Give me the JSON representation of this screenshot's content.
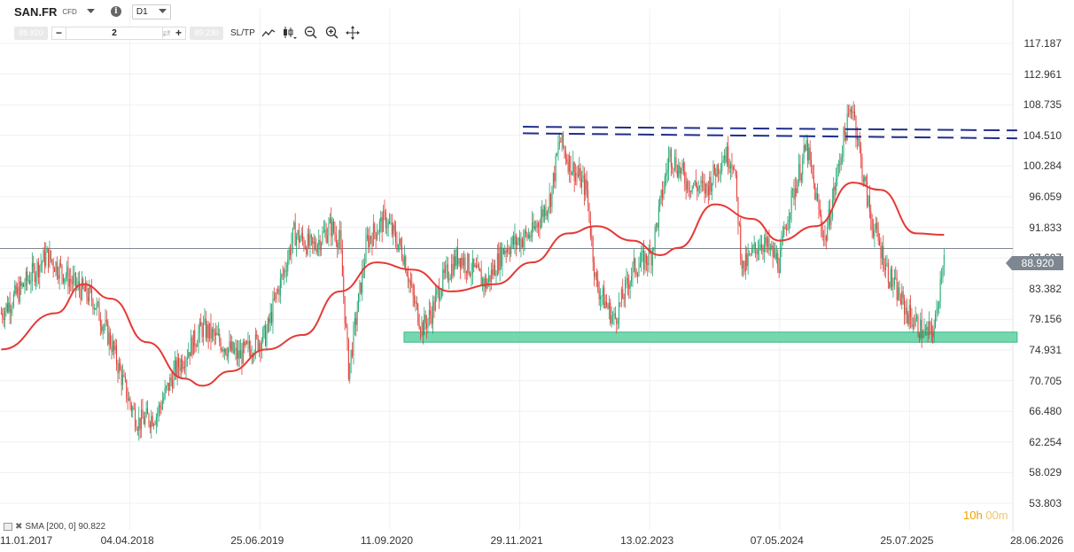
{
  "header": {
    "symbol": "SAN.FR",
    "instrument_type": "CFD",
    "timeframe": "D1",
    "sell_price": "88.920",
    "quantity": "2",
    "buy_price": "89.230",
    "sltp_label": "SL/TP",
    "icons": [
      "chevron-down-icon",
      "info-icon",
      "swap-icon",
      "line-chart-icon",
      "candlestick-icon",
      "zoom-out-icon",
      "zoom-in-icon",
      "move-icon"
    ]
  },
  "current_price_tag": "88.920",
  "indicator_legend": "SMA [200, 0] 90.822",
  "timer": {
    "hours": "10",
    "h": "h",
    "minutes": "00",
    "m": "m"
  },
  "colors": {
    "sma": "#e53935",
    "candle_up": "#1fa870",
    "candle_down": "#e53935",
    "resistance_lines": "#1f2f8c",
    "support_zone": "#66d4a7",
    "price_line": "#7e8691",
    "timer": "#f0a000"
  },
  "chart_data": {
    "type": "candlestick",
    "instrument": "SAN.FR",
    "timeframe": "D1",
    "y_ticks": [
      "117.187",
      "112.961",
      "108.735",
      "104.510",
      "100.284",
      "96.059",
      "91.833",
      "87.607",
      "83.382",
      "79.156",
      "74.931",
      "70.705",
      "66.480",
      "62.254",
      "58.029",
      "53.803"
    ],
    "ylim": [
      53.803,
      117.187
    ],
    "x_ticks": [
      "11.01.2017",
      "04.04.2018",
      "25.06.2019",
      "11.09.2020",
      "29.11.2021",
      "13.02.2023",
      "07.05.2024",
      "25.07.2025",
      "28.06.2026"
    ],
    "last_price": 88.92,
    "price_path": [
      [
        "2017-01",
        80
      ],
      [
        "2017-03",
        83
      ],
      [
        "2017-06",
        88
      ],
      [
        "2017-09",
        84
      ],
      [
        "2017-11",
        82
      ],
      [
        "2018-01",
        76
      ],
      [
        "2018-03",
        68
      ],
      [
        "2018-04",
        65
      ],
      [
        "2018-06",
        66
      ],
      [
        "2018-08",
        72
      ],
      [
        "2018-11",
        78
      ],
      [
        "2019-01",
        76
      ],
      [
        "2019-03",
        74
      ],
      [
        "2019-06",
        77
      ],
      [
        "2019-07",
        82
      ],
      [
        "2019-08",
        86
      ],
      [
        "2019-09",
        91
      ],
      [
        "2019-11",
        89
      ],
      [
        "2020-01",
        92
      ],
      [
        "2020-02",
        90
      ],
      [
        "2020-03",
        72
      ],
      [
        "2020-05",
        90
      ],
      [
        "2020-07",
        93
      ],
      [
        "2020-09",
        88
      ],
      [
        "2020-10",
        82
      ],
      [
        "2020-11",
        78
      ],
      [
        "2020-12",
        80
      ],
      [
        "2021-01",
        84
      ],
      [
        "2021-03",
        88
      ],
      [
        "2021-06",
        84
      ],
      [
        "2021-08",
        89
      ],
      [
        "2021-11",
        91
      ],
      [
        "2022-01",
        96
      ],
      [
        "2022-02",
        104
      ],
      [
        "2022-03",
        101
      ],
      [
        "2022-05",
        97
      ],
      [
        "2022-06",
        84
      ],
      [
        "2022-08",
        79
      ],
      [
        "2022-10",
        86
      ],
      [
        "2022-12",
        88
      ],
      [
        "2023-02",
        102
      ],
      [
        "2023-04",
        98
      ],
      [
        "2023-06",
        97
      ],
      [
        "2023-08",
        102
      ],
      [
        "2023-09",
        101
      ],
      [
        "2023-10",
        86
      ],
      [
        "2023-12",
        90
      ],
      [
        "2024-02",
        87
      ],
      [
        "2024-03",
        94
      ],
      [
        "2024-05",
        103
      ],
      [
        "2024-06",
        96
      ],
      [
        "2024-07",
        90
      ],
      [
        "2024-09",
        104
      ],
      [
        "2024-10",
        109
      ],
      [
        "2024-11",
        100
      ],
      [
        "2024-12",
        93
      ],
      [
        "2025-02",
        85
      ],
      [
        "2025-04",
        80
      ],
      [
        "2025-06",
        77
      ],
      [
        "2025-07",
        78
      ],
      [
        "2025-08",
        88.92
      ]
    ],
    "sma_200": {
      "name": "SMA [200, 0]",
      "last_value": 90.822,
      "path": [
        [
          "2017-01",
          75
        ],
        [
          "2017-07",
          80
        ],
        [
          "2017-10",
          84
        ],
        [
          "2018-01",
          82
        ],
        [
          "2018-05",
          76
        ],
        [
          "2018-09",
          71
        ],
        [
          "2018-11",
          70
        ],
        [
          "2019-02",
          72
        ],
        [
          "2019-06",
          75
        ],
        [
          "2019-10",
          77
        ],
        [
          "2020-02",
          83
        ],
        [
          "2020-06",
          87
        ],
        [
          "2020-10",
          86
        ],
        [
          "2021-02",
          83
        ],
        [
          "2021-07",
          84
        ],
        [
          "2021-11",
          87
        ],
        [
          "2022-03",
          91
        ],
        [
          "2022-06",
          92
        ],
        [
          "2022-10",
          90
        ],
        [
          "2023-01",
          88
        ],
        [
          "2023-03",
          89
        ],
        [
          "2023-07",
          95
        ],
        [
          "2023-11",
          93
        ],
        [
          "2024-02",
          90
        ],
        [
          "2024-06",
          92
        ],
        [
          "2024-10",
          98
        ],
        [
          "2025-01",
          97
        ],
        [
          "2025-05",
          91
        ],
        [
          "2025-08",
          90.8
        ]
      ]
    },
    "resistance_lines": [
      {
        "from": [
          "2021-10",
          105.7
        ],
        "to": [
          "2026-04",
          105.2
        ]
      },
      {
        "from": [
          "2021-10",
          104.8
        ],
        "to": [
          "2026-04",
          104.1
        ]
      }
    ],
    "support_zone": {
      "from": "2020-09",
      "to": "2026-04",
      "y_low": 76.0,
      "y_high": 77.4
    },
    "grid": true,
    "legend": "bottom-left"
  }
}
